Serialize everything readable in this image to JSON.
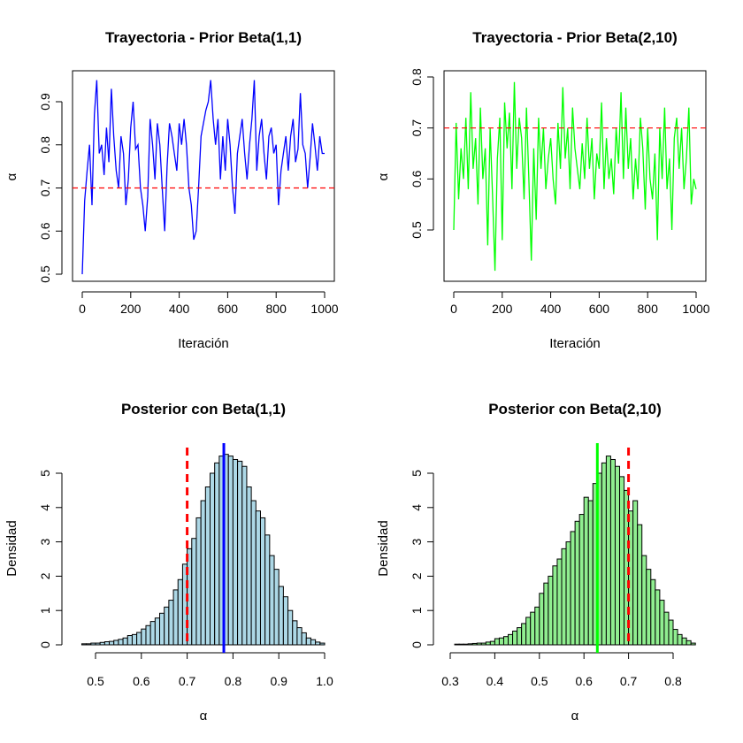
{
  "colors": {
    "trace1": "#0000ff",
    "trace2": "#00ff00",
    "ref_line": "#ff0000",
    "hist1_fill": "#add8e6",
    "hist2_fill": "#90ee90",
    "mean1_line": "#0000ff",
    "mean2_line": "#00ff00"
  },
  "chart_data": [
    {
      "id": "trace1",
      "type": "line",
      "title": "Trayectoria - Prior Beta(1,1)",
      "xlabel": "Iteración",
      "ylabel": "α",
      "xlim": [
        0,
        1000
      ],
      "ylim": [
        0.5,
        0.95
      ],
      "xticks": [
        "0",
        "200",
        "400",
        "600",
        "800",
        "1000"
      ],
      "yticks": [
        "0.5",
        "0.6",
        "0.7",
        "0.8",
        "0.9"
      ],
      "reference_line": 0.7,
      "grid": false,
      "x": [
        0,
        10,
        20,
        30,
        40,
        50,
        60,
        70,
        80,
        90,
        100,
        110,
        120,
        130,
        140,
        150,
        160,
        170,
        180,
        190,
        200,
        210,
        220,
        230,
        240,
        250,
        260,
        270,
        280,
        290,
        300,
        310,
        320,
        330,
        340,
        350,
        360,
        370,
        380,
        390,
        400,
        410,
        420,
        430,
        440,
        450,
        460,
        470,
        480,
        490,
        500,
        510,
        520,
        530,
        540,
        550,
        560,
        570,
        580,
        590,
        600,
        610,
        620,
        630,
        640,
        650,
        660,
        670,
        680,
        690,
        700,
        710,
        720,
        730,
        740,
        750,
        760,
        770,
        780,
        790,
        800,
        810,
        820,
        830,
        840,
        850,
        860,
        870,
        880,
        890,
        900,
        910,
        920,
        930,
        940,
        950,
        960,
        970,
        980,
        990,
        1000
      ],
      "y": [
        0.5,
        0.67,
        0.74,
        0.8,
        0.66,
        0.87,
        0.95,
        0.78,
        0.8,
        0.73,
        0.84,
        0.76,
        0.93,
        0.82,
        0.74,
        0.7,
        0.82,
        0.78,
        0.66,
        0.72,
        0.84,
        0.9,
        0.79,
        0.8,
        0.7,
        0.66,
        0.6,
        0.68,
        0.86,
        0.8,
        0.72,
        0.85,
        0.8,
        0.7,
        0.6,
        0.75,
        0.85,
        0.82,
        0.78,
        0.74,
        0.85,
        0.8,
        0.86,
        0.8,
        0.7,
        0.66,
        0.58,
        0.6,
        0.7,
        0.82,
        0.85,
        0.88,
        0.9,
        0.95,
        0.86,
        0.8,
        0.86,
        0.72,
        0.82,
        0.74,
        0.86,
        0.8,
        0.7,
        0.64,
        0.78,
        0.82,
        0.86,
        0.78,
        0.72,
        0.8,
        0.86,
        0.95,
        0.74,
        0.82,
        0.86,
        0.78,
        0.72,
        0.82,
        0.84,
        0.78,
        0.8,
        0.66,
        0.74,
        0.78,
        0.82,
        0.74,
        0.82,
        0.86,
        0.76,
        0.79,
        0.92,
        0.8,
        0.78,
        0.7,
        0.77,
        0.85,
        0.8,
        0.74,
        0.82,
        0.78,
        0.78
      ]
    },
    {
      "id": "trace2",
      "type": "line",
      "title": "Trayectoria - Prior Beta(2,10)",
      "xlabel": "Iteración",
      "ylabel": "α",
      "xlim": [
        0,
        1000
      ],
      "ylim": [
        0.4,
        0.8
      ],
      "xticks": [
        "0",
        "200",
        "400",
        "600",
        "800",
        "1000"
      ],
      "yticks": [
        "0.5",
        "0.6",
        "0.7",
        "0.8"
      ],
      "reference_line": 0.7,
      "grid": false,
      "x": [
        0,
        10,
        20,
        30,
        40,
        50,
        60,
        70,
        80,
        90,
        100,
        110,
        120,
        130,
        140,
        150,
        160,
        170,
        180,
        190,
        200,
        210,
        220,
        230,
        240,
        250,
        260,
        270,
        280,
        290,
        300,
        310,
        320,
        330,
        340,
        350,
        360,
        370,
        380,
        390,
        400,
        410,
        420,
        430,
        440,
        450,
        460,
        470,
        480,
        490,
        500,
        510,
        520,
        530,
        540,
        550,
        560,
        570,
        580,
        590,
        600,
        610,
        620,
        630,
        640,
        650,
        660,
        670,
        680,
        690,
        700,
        710,
        720,
        730,
        740,
        750,
        760,
        770,
        780,
        790,
        800,
        810,
        820,
        830,
        840,
        850,
        860,
        870,
        880,
        890,
        900,
        910,
        920,
        930,
        940,
        950,
        960,
        970,
        980,
        990,
        1000
      ],
      "y": [
        0.5,
        0.71,
        0.56,
        0.66,
        0.6,
        0.72,
        0.58,
        0.77,
        0.62,
        0.68,
        0.55,
        0.74,
        0.6,
        0.66,
        0.47,
        0.7,
        0.57,
        0.42,
        0.64,
        0.72,
        0.48,
        0.75,
        0.66,
        0.73,
        0.58,
        0.79,
        0.62,
        0.72,
        0.68,
        0.56,
        0.74,
        0.6,
        0.44,
        0.66,
        0.52,
        0.72,
        0.62,
        0.7,
        0.58,
        0.64,
        0.68,
        0.6,
        0.55,
        0.71,
        0.62,
        0.78,
        0.64,
        0.7,
        0.58,
        0.74,
        0.66,
        0.62,
        0.58,
        0.67,
        0.6,
        0.72,
        0.62,
        0.68,
        0.56,
        0.65,
        0.62,
        0.75,
        0.58,
        0.68,
        0.6,
        0.64,
        0.57,
        0.7,
        0.63,
        0.77,
        0.6,
        0.74,
        0.62,
        0.68,
        0.56,
        0.64,
        0.58,
        0.72,
        0.66,
        0.54,
        0.7,
        0.6,
        0.56,
        0.65,
        0.48,
        0.7,
        0.6,
        0.74,
        0.58,
        0.64,
        0.5,
        0.68,
        0.72,
        0.62,
        0.7,
        0.58,
        0.64,
        0.74,
        0.55,
        0.6,
        0.58
      ]
    },
    {
      "id": "hist1",
      "type": "bar",
      "title": "Posterior con Beta(1,1)",
      "xlabel": "α",
      "ylabel": "Densidad",
      "xlim": [
        0.45,
        1.0
      ],
      "ylim": [
        0,
        5.6
      ],
      "xticks": [
        "0.5",
        "0.6",
        "0.7",
        "0.8",
        "0.9",
        "1.0"
      ],
      "yticks": [
        "0",
        "1",
        "2",
        "3",
        "4",
        "5"
      ],
      "bin_width": 0.01,
      "bins_start": [
        0.47,
        0.48,
        0.49,
        0.5,
        0.51,
        0.52,
        0.53,
        0.54,
        0.55,
        0.56,
        0.57,
        0.58,
        0.59,
        0.6,
        0.61,
        0.62,
        0.63,
        0.64,
        0.65,
        0.66,
        0.67,
        0.68,
        0.69,
        0.7,
        0.71,
        0.72,
        0.73,
        0.74,
        0.75,
        0.76,
        0.77,
        0.78,
        0.79,
        0.8,
        0.81,
        0.82,
        0.83,
        0.84,
        0.85,
        0.86,
        0.87,
        0.88,
        0.89,
        0.9,
        0.91,
        0.92,
        0.93,
        0.94,
        0.95,
        0.96,
        0.97,
        0.98,
        0.99
      ],
      "values": [
        0.03,
        0.03,
        0.05,
        0.05,
        0.07,
        0.09,
        0.1,
        0.13,
        0.16,
        0.2,
        0.27,
        0.3,
        0.36,
        0.46,
        0.56,
        0.68,
        0.78,
        0.92,
        1.1,
        1.3,
        1.6,
        1.9,
        2.35,
        2.8,
        3.1,
        3.7,
        4.2,
        4.6,
        5.0,
        5.3,
        5.5,
        5.55,
        5.5,
        5.4,
        5.35,
        5.2,
        4.6,
        4.2,
        3.9,
        3.7,
        3.2,
        2.6,
        2.2,
        1.7,
        1.4,
        1.0,
        0.7,
        0.5,
        0.35,
        0.2,
        0.15,
        0.08,
        0.05
      ],
      "reference_line": 0.7,
      "mean_line": 0.78
    },
    {
      "id": "hist2",
      "type": "bar",
      "title": "Posterior con Beta(2,10)",
      "xlabel": "α",
      "ylabel": "Densidad",
      "xlim": [
        0.3,
        0.85
      ],
      "ylim": [
        0,
        5.6
      ],
      "xticks": [
        "0.3",
        "0.4",
        "0.5",
        "0.6",
        "0.7",
        "0.8"
      ],
      "yticks": [
        "0",
        "1",
        "2",
        "3",
        "4",
        "5"
      ],
      "bin_width": 0.01,
      "bins_start": [
        0.31,
        0.32,
        0.33,
        0.34,
        0.35,
        0.36,
        0.37,
        0.38,
        0.39,
        0.4,
        0.41,
        0.42,
        0.43,
        0.44,
        0.45,
        0.46,
        0.47,
        0.48,
        0.49,
        0.5,
        0.51,
        0.52,
        0.53,
        0.54,
        0.55,
        0.56,
        0.57,
        0.58,
        0.59,
        0.6,
        0.61,
        0.62,
        0.63,
        0.64,
        0.65,
        0.66,
        0.67,
        0.68,
        0.69,
        0.7,
        0.71,
        0.72,
        0.73,
        0.74,
        0.75,
        0.76,
        0.77,
        0.78,
        0.79,
        0.8,
        0.81,
        0.82,
        0.83,
        0.84
      ],
      "values": [
        0.02,
        0.02,
        0.02,
        0.03,
        0.04,
        0.05,
        0.05,
        0.08,
        0.1,
        0.18,
        0.2,
        0.24,
        0.3,
        0.4,
        0.5,
        0.62,
        0.8,
        0.95,
        1.1,
        1.5,
        1.8,
        2.0,
        2.3,
        2.5,
        2.8,
        3.0,
        3.3,
        3.6,
        3.8,
        4.3,
        4.2,
        4.7,
        5.0,
        5.3,
        5.5,
        5.4,
        5.2,
        4.9,
        4.5,
        3.9,
        4.2,
        3.5,
        2.6,
        2.2,
        1.9,
        1.6,
        1.3,
        0.95,
        0.72,
        0.45,
        0.3,
        0.2,
        0.12,
        0.05
      ],
      "reference_line": 0.7,
      "mean_line": 0.63
    }
  ]
}
